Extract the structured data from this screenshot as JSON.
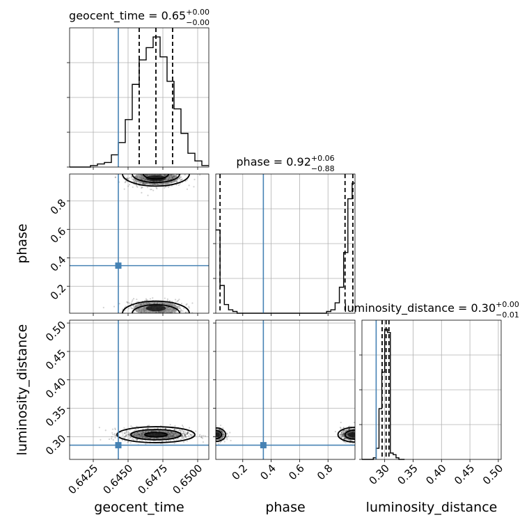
{
  "chart_data": {
    "type": "corner",
    "truth_color": "#4682b4",
    "parameters": [
      {
        "name": "geocent_time",
        "axis_label": "geocent_time",
        "range": [
          0.6408,
          0.6508
        ],
        "ticks": [
          "0.6425",
          "0.6450",
          "0.6475",
          "0.6500"
        ],
        "tick_values": [
          0.6425,
          0.645,
          0.6475,
          0.65
        ],
        "title": {
          "prefix": "geocent_time = 0.65",
          "plus": "+0.00",
          "minus": "−0.00"
        },
        "truth": 0.6443,
        "quantiles": [
          0.6458,
          0.647,
          0.6482
        ],
        "hist": {
          "edges": [
            0.6408,
            0.6413,
            0.6418,
            0.6423,
            0.6428,
            0.6433,
            0.6438,
            0.6443,
            0.6448,
            0.6453,
            0.6458,
            0.6463,
            0.6468,
            0.6473,
            0.6478,
            0.6483,
            0.6488,
            0.6493,
            0.6498,
            0.6503,
            0.6508
          ],
          "counts": [
            0,
            0,
            0,
            1,
            2,
            3,
            8,
            16,
            31,
            54,
            70,
            78,
            85,
            72,
            56,
            38,
            22,
            9,
            4,
            1
          ]
        }
      },
      {
        "name": "phase",
        "axis_label": "phase",
        "range": [
          0.01,
          0.99
        ],
        "ticks": [
          "0.2",
          "0.4",
          "0.6",
          "0.8"
        ],
        "tick_values": [
          0.2,
          0.4,
          0.6,
          0.8
        ],
        "title": {
          "prefix": "phase = 0.92",
          "plus": "+0.06",
          "minus": "−0.88"
        },
        "truth": 0.345,
        "quantiles": [
          0.04,
          0.92,
          0.975
        ],
        "hist": {
          "edges": [
            0.01,
            0.04,
            0.07,
            0.1,
            0.13,
            0.16,
            0.19,
            0.22,
            0.25,
            0.28,
            0.31,
            0.34,
            0.37,
            0.4,
            0.43,
            0.46,
            0.49,
            0.52,
            0.55,
            0.58,
            0.61,
            0.64,
            0.67,
            0.7,
            0.73,
            0.76,
            0.79,
            0.82,
            0.85,
            0.88,
            0.91,
            0.94,
            0.97,
            0.99
          ],
          "counts": [
            48,
            16,
            5,
            2,
            1,
            0,
            0,
            0,
            0,
            0,
            0,
            0,
            0,
            0,
            0,
            0,
            0,
            0,
            0,
            0,
            0,
            0,
            0,
            0,
            0,
            0,
            1,
            2,
            6,
            15,
            35,
            66,
            75
          ]
        }
      },
      {
        "name": "luminosity_distance",
        "axis_label": "luminosity_distance",
        "range": [
          0.26,
          0.505
        ],
        "ticks": [
          "0.30",
          "0.35",
          "0.40",
          "0.45",
          "0.50"
        ],
        "tick_values": [
          0.3,
          0.35,
          0.4,
          0.45,
          0.5
        ],
        "title": {
          "prefix": "luminosity_distance = 0.30",
          "plus": "+0.00",
          "minus": "−0.01"
        },
        "truth": 0.285,
        "quantiles": [
          0.2955,
          0.3025,
          0.3075
        ],
        "hist": {
          "edges": [
            0.26,
            0.265,
            0.27,
            0.275,
            0.28,
            0.285,
            0.29,
            0.295,
            0.3,
            0.305,
            0.31,
            0.315,
            0.32,
            0.325,
            0.33,
            0.335
          ],
          "counts": [
            0,
            0,
            0,
            0,
            1,
            7,
            32,
            55,
            82,
            80,
            4,
            3,
            1,
            0,
            0
          ]
        }
      }
    ],
    "left_axis_ticks": {
      "phase": [
        "0.2",
        "0.4",
        "0.6",
        "0.8"
      ],
      "luminosity_distance": [
        "0.30",
        "0.35",
        "0.40",
        "0.45",
        "0.50"
      ]
    },
    "density_panels": [
      {
        "x": "geocent_time",
        "y": "phase",
        "blobs": [
          {
            "cx": 0.647,
            "cy": 0.96,
            "sx": 0.001,
            "sy": 0.03,
            "n": 700
          },
          {
            "cx": 0.647,
            "cy": 0.045,
            "sx": 0.001,
            "sy": 0.03,
            "n": 450
          }
        ],
        "contours": [
          {
            "cx": 0.647,
            "cy": 0.99,
            "rx": 0.0024,
            "ry": 0.085
          },
          {
            "cx": 0.647,
            "cy": 0.99,
            "rx": 0.0017,
            "ry": 0.06
          },
          {
            "cx": 0.647,
            "cy": 0.99,
            "rx": 0.0009,
            "ry": 0.035
          },
          {
            "cx": 0.647,
            "cy": 0.01,
            "rx": 0.0024,
            "ry": 0.085
          },
          {
            "cx": 0.647,
            "cy": 0.01,
            "rx": 0.0017,
            "ry": 0.06
          }
        ]
      },
      {
        "x": "geocent_time",
        "y": "luminosity_distance",
        "blobs": [
          {
            "cx": 0.647,
            "cy": 0.3035,
            "sx": 0.0012,
            "sy": 0.006,
            "n": 900
          }
        ],
        "contours": [
          {
            "cx": 0.647,
            "cy": 0.3035,
            "rx": 0.0028,
            "ry": 0.014
          },
          {
            "cx": 0.647,
            "cy": 0.3035,
            "rx": 0.0018,
            "ry": 0.009
          },
          {
            "cx": 0.647,
            "cy": 0.3035,
            "rx": 0.0008,
            "ry": 0.004
          }
        ]
      },
      {
        "x": "phase",
        "y": "luminosity_distance",
        "blobs": [
          {
            "cx": 0.97,
            "cy": 0.3035,
            "sx": 0.04,
            "sy": 0.006,
            "n": 650
          },
          {
            "cx": 0.02,
            "cy": 0.3035,
            "sx": 0.03,
            "sy": 0.006,
            "n": 350
          }
        ],
        "contours": [
          {
            "cx": 0.99,
            "cy": 0.3035,
            "rx": 0.12,
            "ry": 0.013
          },
          {
            "cx": 0.99,
            "cy": 0.3035,
            "rx": 0.07,
            "ry": 0.008
          },
          {
            "cx": 0.01,
            "cy": 0.3035,
            "rx": 0.07,
            "ry": 0.012
          },
          {
            "cx": 0.01,
            "cy": 0.3035,
            "rx": 0.04,
            "ry": 0.007
          }
        ]
      }
    ]
  }
}
